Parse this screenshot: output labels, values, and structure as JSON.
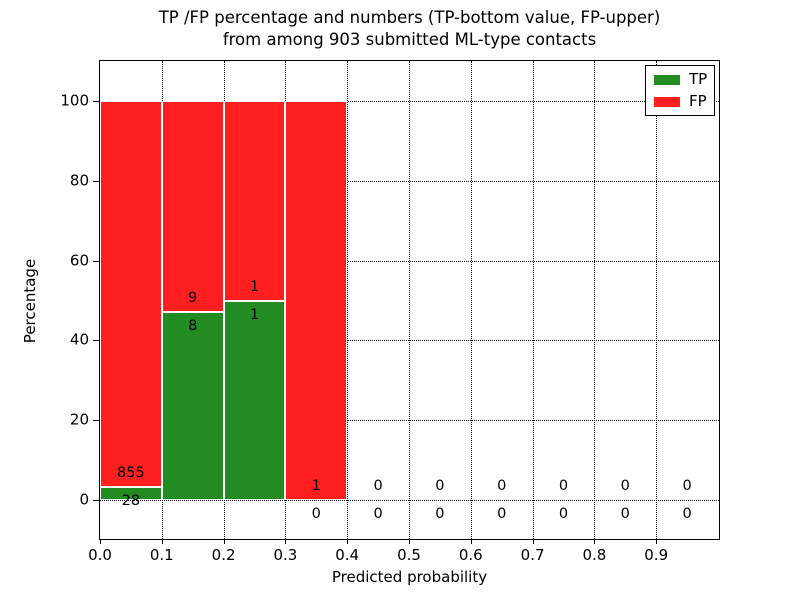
{
  "title": {
    "line1": "TP /FP percentage and numbers (TP-bottom value, FP-upper)",
    "line2": "from among 903 submitted ML-type contacts"
  },
  "axes": {
    "xlabel": "Predicted probability",
    "ylabel": "Percentage",
    "yticks": [
      0,
      20,
      40,
      60,
      80,
      100
    ],
    "xticks": [
      "0.0",
      "0.1",
      "0.2",
      "0.3",
      "0.4",
      "0.5",
      "0.6",
      "0.7",
      "0.8",
      "0.9"
    ]
  },
  "legend": {
    "entries": [
      {
        "label": "TP",
        "color": "#228b22"
      },
      {
        "label": "FP",
        "color": "#ff1f1f"
      }
    ]
  },
  "chart_data": {
    "type": "bar",
    "stacked": true,
    "normalized_to_percent": true,
    "title": "TP /FP percentage and numbers (TP-bottom value, FP-upper) from among 903 submitted ML-type contacts",
    "xlabel": "Predicted probability",
    "ylabel": "Percentage",
    "xlim": [
      0.0,
      1.0
    ],
    "ylim": [
      -10,
      110
    ],
    "grid": true,
    "legend_position": "upper right",
    "bin_width": 0.1,
    "bin_starts": [
      0.0,
      0.1,
      0.2,
      0.3,
      0.4,
      0.5,
      0.6,
      0.7,
      0.8,
      0.9
    ],
    "series": [
      {
        "name": "TP",
        "color": "#228b22",
        "counts": [
          28,
          8,
          1,
          0,
          0,
          0,
          0,
          0,
          0,
          0
        ]
      },
      {
        "name": "FP",
        "color": "#ff1f1f",
        "counts": [
          855,
          9,
          1,
          1,
          0,
          0,
          0,
          0,
          0,
          0
        ]
      }
    ],
    "tp_percent_of_bin": [
      3.17,
      47.06,
      50.0,
      0.0,
      null,
      null,
      null,
      null,
      null,
      null
    ],
    "total_contacts": 903
  }
}
